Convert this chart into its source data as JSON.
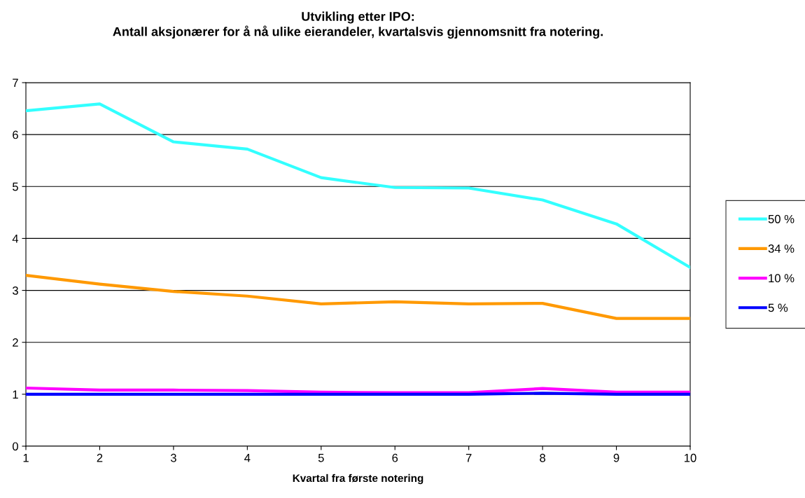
{
  "chart_data": {
    "type": "line",
    "title": "Utvikling etter IPO:\nAntall aksjonærer for å nå ulike eierandeler, kvartalsvis gjennomsnitt fra notering.",
    "xlabel": "Kvartal fra første notering",
    "x": [
      1,
      2,
      3,
      4,
      5,
      6,
      7,
      8,
      9,
      10
    ],
    "series": [
      {
        "name": "50 %",
        "color": "#33ffff",
        "values": [
          6.46,
          6.59,
          5.86,
          5.72,
          5.17,
          4.98,
          4.97,
          4.74,
          4.28,
          3.44
        ]
      },
      {
        "name": "34 %",
        "color": "#ff9900",
        "values": [
          3.29,
          3.12,
          2.98,
          2.89,
          2.74,
          2.78,
          2.74,
          2.75,
          2.46,
          2.46
        ]
      },
      {
        "name": "10 %",
        "color": "#ff00ff",
        "values": [
          1.12,
          1.08,
          1.08,
          1.07,
          1.04,
          1.03,
          1.03,
          1.11,
          1.04,
          1.04
        ]
      },
      {
        "name": "5 %",
        "color": "#0000ff",
        "values": [
          1.0,
          1.0,
          1.0,
          1.0,
          1.0,
          1.0,
          1.0,
          1.02,
          1.0,
          1.0
        ]
      }
    ],
    "xlim": [
      1,
      10
    ],
    "xticks": [
      1,
      2,
      3,
      4,
      5,
      6,
      7,
      8,
      9,
      10
    ],
    "ylim": [
      0,
      7
    ],
    "yticks": [
      0,
      1,
      2,
      3,
      4,
      5,
      6,
      7
    ],
    "grid": "y",
    "legend": "right",
    "marker": "none",
    "line_style": "solid"
  }
}
